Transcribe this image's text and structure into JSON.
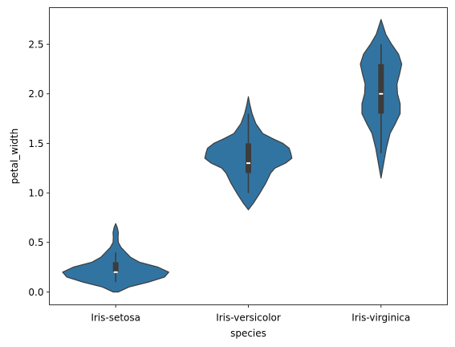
{
  "chart_data": {
    "type": "violin",
    "title": "",
    "xlabel": "species",
    "ylabel": "petal_width",
    "ylim": [
      -0.13,
      2.87
    ],
    "y_ticks": [
      0.0,
      0.5,
      1.0,
      1.5,
      2.0,
      2.5
    ],
    "y_tick_labels": [
      "0.0",
      "0.5",
      "1.0",
      "1.5",
      "2.0",
      "2.5"
    ],
    "grid": false,
    "legend": "none",
    "color": "#3274a1",
    "edge_color": "#3c3c3c",
    "box_color": "#3c3c3c",
    "median_color": "#ffffff",
    "categories": [
      "Iris-setosa",
      "Iris-versicolor",
      "Iris-virginica"
    ],
    "violins": [
      {
        "category": "Iris-setosa",
        "min": 0.1,
        "q1": 0.2,
        "median": 0.2,
        "q3": 0.3,
        "max": 0.4,
        "kde_range": [
          0.0,
          0.69
        ],
        "density": [
          [
            0.0,
            0.05
          ],
          [
            0.05,
            0.25
          ],
          [
            0.1,
            0.62
          ],
          [
            0.15,
            0.92
          ],
          [
            0.2,
            1.0
          ],
          [
            0.25,
            0.8
          ],
          [
            0.3,
            0.45
          ],
          [
            0.35,
            0.28
          ],
          [
            0.4,
            0.19
          ],
          [
            0.45,
            0.1
          ],
          [
            0.5,
            0.05
          ],
          [
            0.55,
            0.045
          ],
          [
            0.6,
            0.05
          ],
          [
            0.65,
            0.03
          ],
          [
            0.69,
            0.0
          ]
        ]
      },
      {
        "category": "Iris-versicolor",
        "min": 1.0,
        "q1": 1.2,
        "median": 1.3,
        "q3": 1.5,
        "max": 1.8,
        "kde_range": [
          0.83,
          1.97
        ],
        "density": [
          [
            0.83,
            0.0
          ],
          [
            0.9,
            0.1
          ],
          [
            1.0,
            0.22
          ],
          [
            1.1,
            0.33
          ],
          [
            1.2,
            0.42
          ],
          [
            1.25,
            0.5
          ],
          [
            1.3,
            0.7
          ],
          [
            1.35,
            0.82
          ],
          [
            1.4,
            0.8
          ],
          [
            1.45,
            0.77
          ],
          [
            1.5,
            0.65
          ],
          [
            1.55,
            0.45
          ],
          [
            1.6,
            0.27
          ],
          [
            1.7,
            0.14
          ],
          [
            1.8,
            0.07
          ],
          [
            1.9,
            0.025
          ],
          [
            1.97,
            0.0
          ]
        ]
      },
      {
        "category": "Iris-virginica",
        "min": 1.4,
        "q1": 1.8,
        "median": 2.0,
        "q3": 2.3,
        "max": 2.5,
        "kde_range": [
          1.15,
          2.75
        ],
        "density": [
          [
            1.15,
            0.0
          ],
          [
            1.3,
            0.05
          ],
          [
            1.45,
            0.1
          ],
          [
            1.6,
            0.17
          ],
          [
            1.7,
            0.27
          ],
          [
            1.8,
            0.36
          ],
          [
            1.9,
            0.36
          ],
          [
            2.0,
            0.31
          ],
          [
            2.1,
            0.3
          ],
          [
            2.2,
            0.35
          ],
          [
            2.3,
            0.39
          ],
          [
            2.4,
            0.33
          ],
          [
            2.5,
            0.2
          ],
          [
            2.6,
            0.09
          ],
          [
            2.7,
            0.03
          ],
          [
            2.75,
            0.0
          ]
        ]
      }
    ]
  }
}
